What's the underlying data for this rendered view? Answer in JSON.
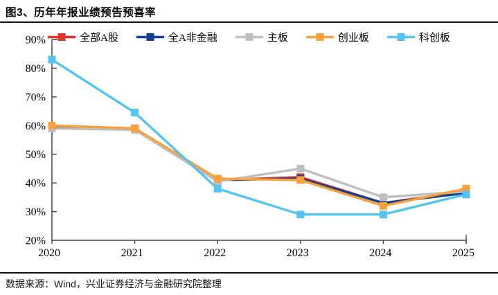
{
  "title": "图3、历年年报业绩预告预喜率",
  "footer": "数据来源：Wind，兴业证券经济与金融研究院整理",
  "chart_data": {
    "type": "line",
    "title": "历年年报业绩预告预喜率",
    "categories": [
      "2020",
      "2021",
      "2022",
      "2023",
      "2024",
      "2025"
    ],
    "series": [
      {
        "name": "全部A股",
        "color": "#e0342b",
        "values": [
          59.5,
          59,
          41,
          42,
          33,
          37
        ]
      },
      {
        "name": "全A非金融",
        "color": "#17418f",
        "values": [
          59.5,
          59,
          41,
          41.5,
          33,
          36.5
        ]
      },
      {
        "name": "主板",
        "color": "#bfbfbf",
        "values": [
          59,
          58.5,
          40.5,
          45,
          35,
          37
        ]
      },
      {
        "name": "创业板",
        "color": "#f9a13a",
        "values": [
          60,
          59,
          41.5,
          41,
          32,
          38
        ]
      },
      {
        "name": "科创板",
        "color": "#55c3f0",
        "values": [
          83,
          64.5,
          38,
          29,
          29,
          36
        ]
      }
    ],
    "xlabel": "",
    "ylabel": "",
    "ylim": [
      20,
      90
    ],
    "ytick_step": 10,
    "ytick_suffix": "%",
    "grid": false,
    "legend_position": "top",
    "marker": "square",
    "axis_color": "#404040"
  }
}
